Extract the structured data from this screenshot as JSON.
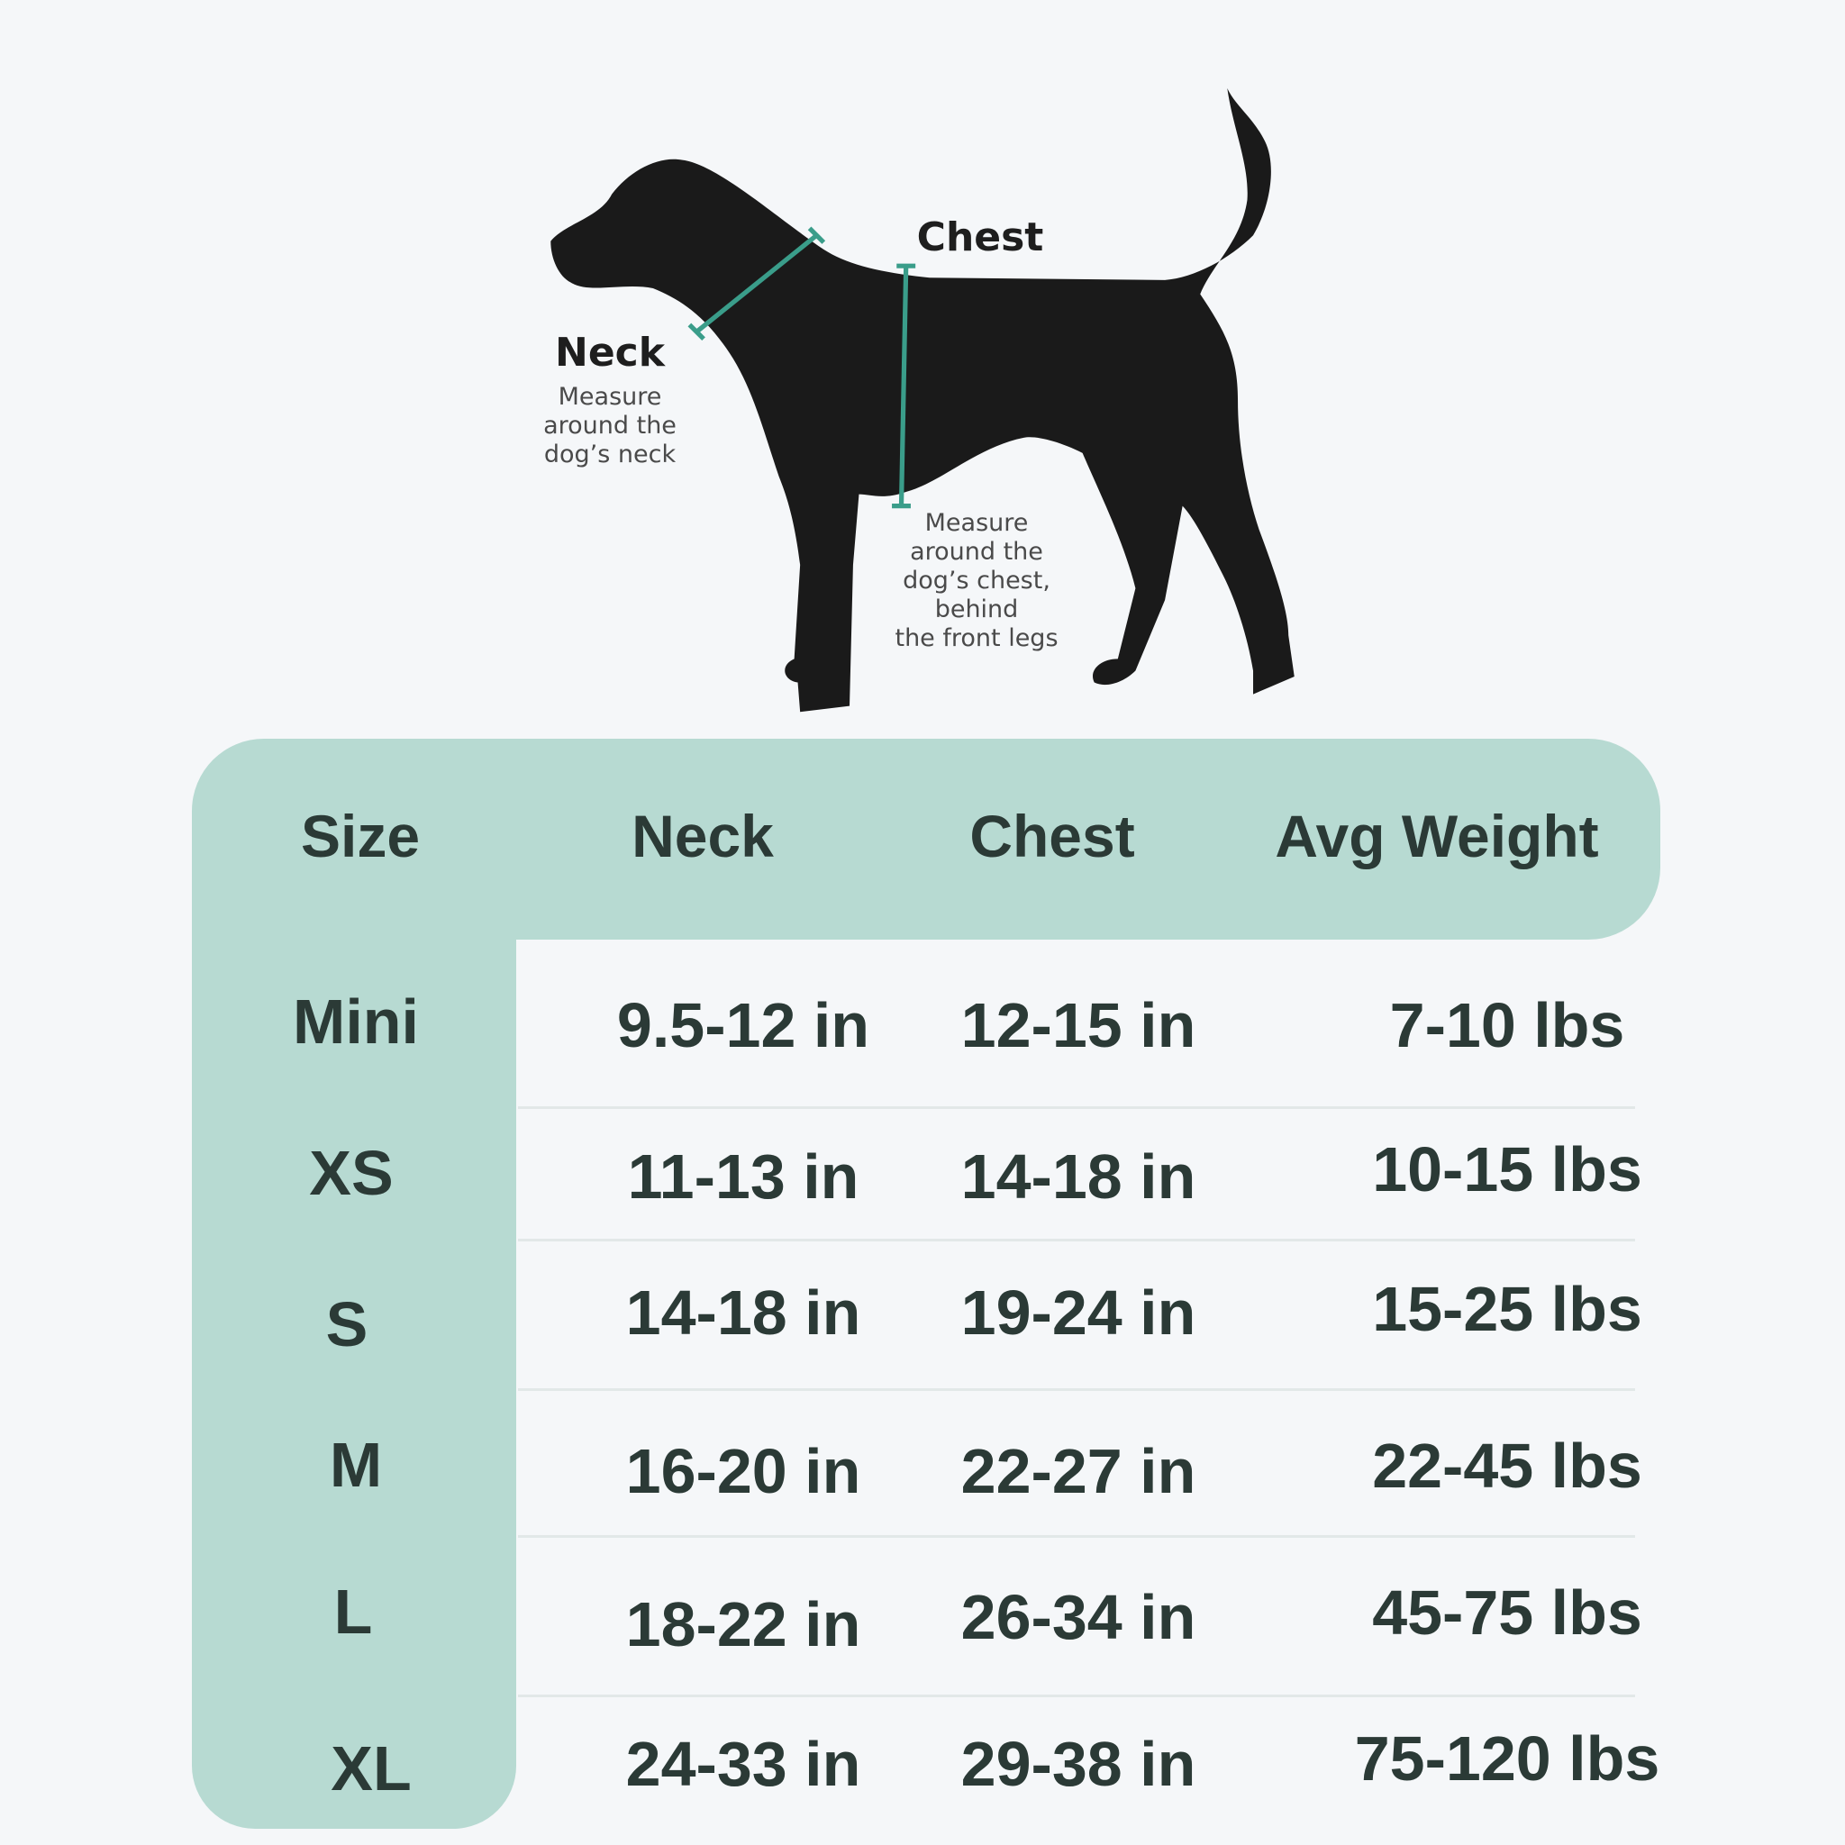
{
  "diagram": {
    "neck": {
      "title": "Neck",
      "description": "Measure\naround the\ndog’s neck"
    },
    "chest": {
      "title": "Chest",
      "description": "Measure\naround the\ndog’s chest,\nbehind\nthe front legs"
    },
    "colors": {
      "silhouette": "#1a1a1a",
      "measure_line": "#3a9d8a"
    }
  },
  "table": {
    "colors": {
      "header_bg": "#b7dad2",
      "text": "#2b3a36",
      "background": "#f5f7f9"
    },
    "headers": [
      "Size",
      "Neck",
      "Chest",
      "Avg Weight"
    ],
    "rows": [
      {
        "size": "Mini",
        "neck": "9.5-12 in",
        "chest": "12-15 in",
        "weight": "7-10 lbs"
      },
      {
        "size": "XS",
        "neck": "11-13 in",
        "chest": "14-18 in",
        "weight": "10-15 lbs"
      },
      {
        "size": "S",
        "neck": "14-18 in",
        "chest": "19-24 in",
        "weight": "15-25 lbs"
      },
      {
        "size": "M",
        "neck": "16-20 in",
        "chest": "22-27 in",
        "weight": "22-45 lbs"
      },
      {
        "size": "L",
        "neck": "18-22 in",
        "chest": "26-34 in",
        "weight": "45-75 lbs"
      },
      {
        "size": "XL",
        "neck": "24-33 in",
        "chest": "29-38 in",
        "weight": "75-120 lbs"
      }
    ]
  }
}
